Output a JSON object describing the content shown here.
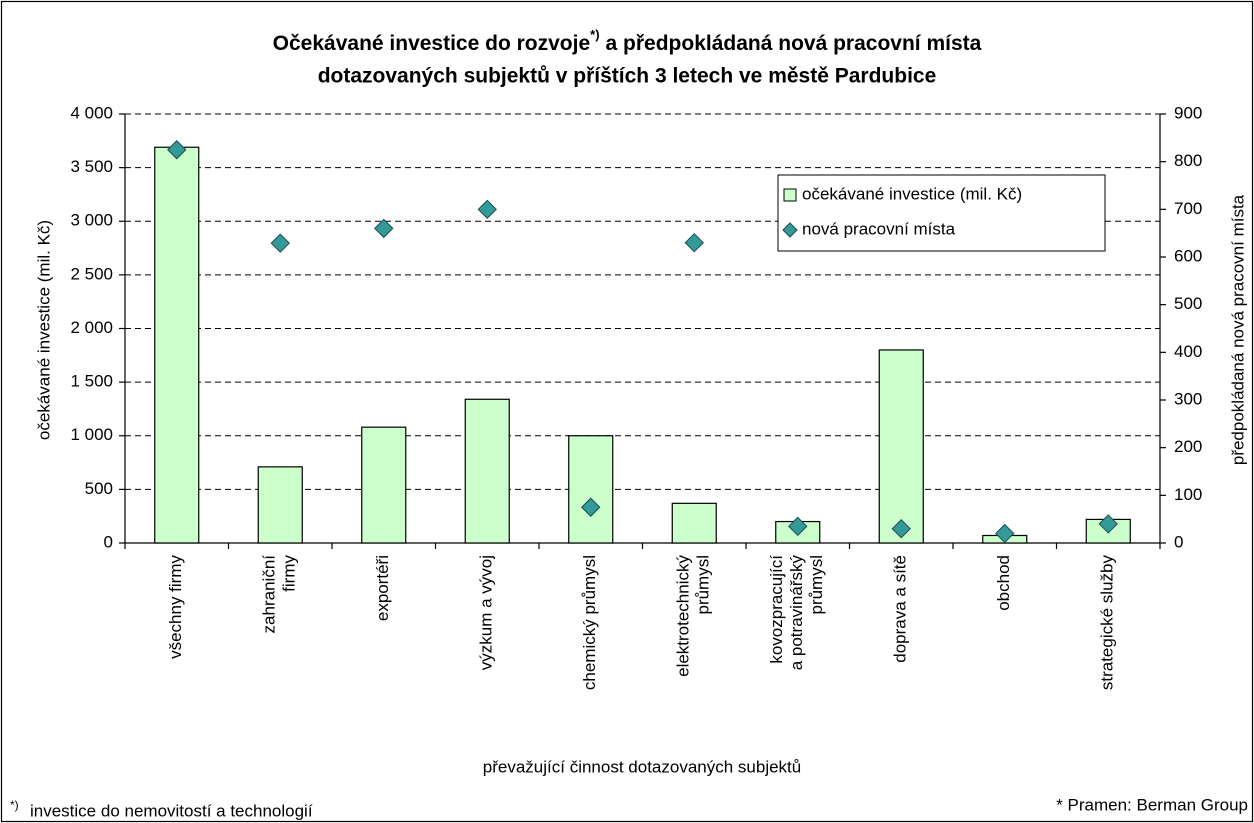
{
  "chart_data": {
    "type": "bar+scatter",
    "title": [
      [
        "Očekávané investice do rozvoje",
        "*)",
        "a předpokládaná nová pracovní místa"
      ],
      [
        "dotazovaných subjektů v příštích 3 letech ve městě Pardubice"
      ]
    ],
    "x_label": "převažující činnost dotazovaných subjektů",
    "y_label": "očekávané investice (mil. Kč)",
    "y2_label": "předpokládaná nová pracovní místa",
    "categories": [
      [
        "všechny firmy"
      ],
      [
        "zahraniční",
        "firmy"
      ],
      [
        "exportéři"
      ],
      [
        "výzkum a vývoj"
      ],
      [
        "chemický průmysl"
      ],
      [
        "elektrotechnický",
        "průmysl"
      ],
      [
        "kovozpracující",
        "a potravinářský",
        "průmysl"
      ],
      [
        "doprava a sítě"
      ],
      [
        "obchod"
      ],
      [
        "strategické služby"
      ]
    ],
    "series": [
      {
        "name": "očekávané investice (mil. Kč)",
        "type": "bar",
        "color": "#ccffcc",
        "values": [
          3690,
          710,
          1080,
          1340,
          1000,
          370,
          200,
          1800,
          70,
          220
        ]
      },
      {
        "name": "nová pracovní místa",
        "type": "scatter",
        "axis": "y2",
        "color": "#339999",
        "values": [
          825,
          629,
          660,
          700,
          75,
          630,
          35,
          30,
          20,
          40
        ]
      }
    ],
    "ylim": [
      0,
      4000
    ],
    "yticks": [
      0,
      500,
      {
        "value": 1000,
        "label": "1 000"
      },
      {
        "value": 1500,
        "label": "1 500"
      },
      {
        "value": 2000,
        "label": "2 000"
      },
      {
        "value": 2500,
        "label": "2 500"
      },
      {
        "value": 3000,
        "label": "3 000"
      },
      {
        "value": 3500,
        "label": "3 500"
      },
      {
        "value": 4000,
        "label": "4 000"
      }
    ],
    "y2lim": [
      0,
      900
    ],
    "y2ticks": [
      0,
      100,
      200,
      300,
      400,
      500,
      600,
      700,
      800,
      900
    ],
    "grid": true,
    "legend": "upper right",
    "footnote": [
      "*)",
      "investice do nemovitostí a technologií"
    ],
    "source": "* Pramen: Berman Group"
  }
}
